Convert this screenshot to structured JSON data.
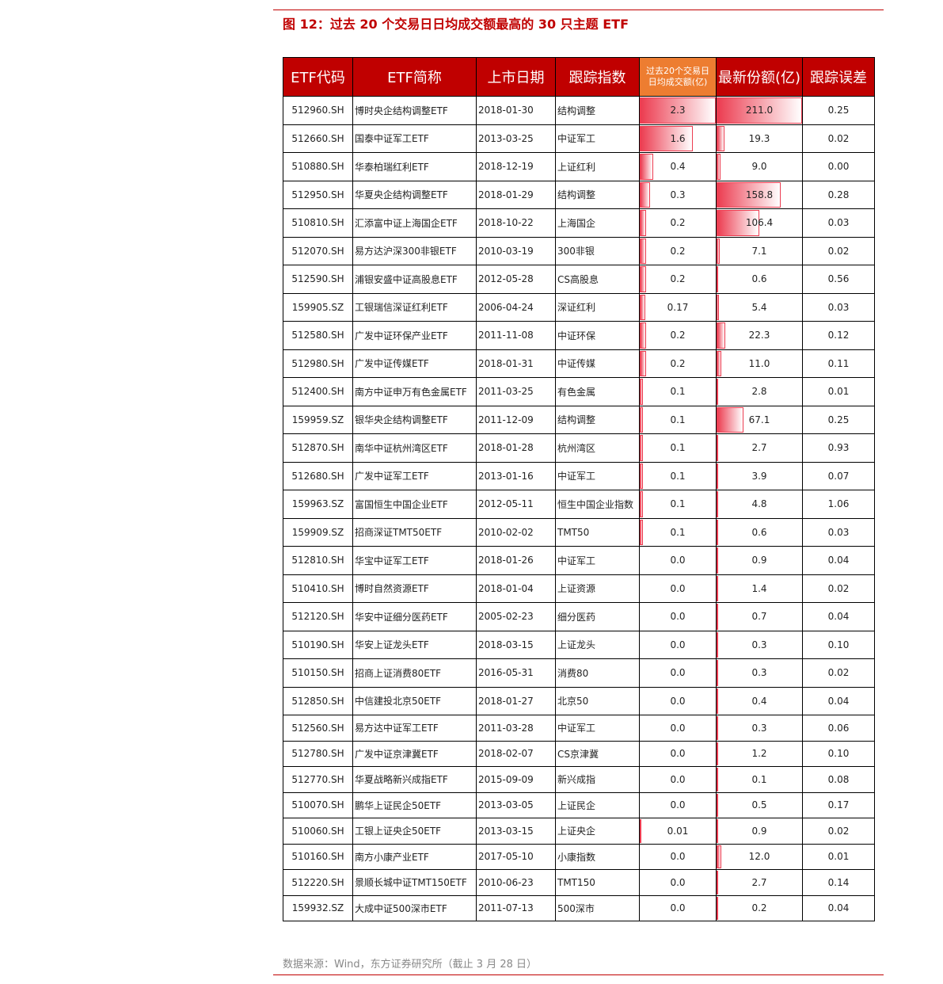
{
  "header": {
    "title": "图 12：过去 20 个交易日日均成交额最高的 30 只主题 ETF"
  },
  "table": {
    "columns": [
      "ETF代码",
      "ETF简称",
      "上市日期",
      "跟踪指数",
      "过去20个交易日日均成交额(亿)",
      "最新份额(亿)",
      "跟踪误差"
    ],
    "rows": [
      [
        "512960.SH",
        "博时央企结构调整ETF",
        "2018-01-30",
        "结构调整",
        "2.3",
        "211.0",
        "0.25"
      ],
      [
        "512660.SH",
        "国泰中证军工ETF",
        "2013-03-25",
        "中证军工",
        "1.6",
        "19.3",
        "0.02"
      ],
      [
        "510880.SH",
        "华泰柏瑞红利ETF",
        "2018-12-19",
        "上证红利",
        "0.4",
        "9.0",
        "0.00"
      ],
      [
        "512950.SH",
        "华夏央企结构调整ETF",
        "2018-01-29",
        "结构调整",
        "0.3",
        "158.8",
        "0.28"
      ],
      [
        "510810.SH",
        "汇添富中证上海国企ETF",
        "2018-10-22",
        "上海国企",
        "0.2",
        "106.4",
        "0.03"
      ],
      [
        "512070.SH",
        "易方达沪深300非银ETF",
        "2010-03-19",
        "300非银",
        "0.2",
        "7.1",
        "0.02"
      ],
      [
        "512590.SH",
        "浦银安盛中证高股息ETF",
        "2012-05-28",
        "CS高股息",
        "0.2",
        "0.6",
        "0.56"
      ],
      [
        "159905.SZ",
        "工银瑞信深证红利ETF",
        "2006-04-24",
        "深证红利",
        "0.17",
        "5.4",
        "0.03"
      ],
      [
        "512580.SH",
        "广发中证环保产业ETF",
        "2011-11-08",
        "中证环保",
        "0.2",
        "22.3",
        "0.12"
      ],
      [
        "512980.SH",
        "广发中证传媒ETF",
        "2018-01-31",
        "中证传媒",
        "0.2",
        "11.0",
        "0.11"
      ],
      [
        "512400.SH",
        "南方中证申万有色金属ETF",
        "2011-03-25",
        "有色金属",
        "0.1",
        "2.8",
        "0.01"
      ],
      [
        "159959.SZ",
        "银华央企结构调整ETF",
        "2011-12-09",
        "结构调整",
        "0.1",
        "67.1",
        "0.25"
      ],
      [
        "512870.SH",
        "南华中证杭州湾区ETF",
        "2018-01-28",
        "杭州湾区",
        "0.1",
        "2.7",
        "0.93"
      ],
      [
        "512680.SH",
        "广发中证军工ETF",
        "2013-01-16",
        "中证军工",
        "0.1",
        "3.9",
        "0.07"
      ],
      [
        "159963.SZ",
        "富国恒生中国企业ETF",
        "2012-05-11",
        "恒生中国企业指数",
        "0.1",
        "4.8",
        "1.06"
      ],
      [
        "159909.SZ",
        "招商深证TMT50ETF",
        "2010-02-02",
        "TMT50",
        "0.1",
        "0.6",
        "0.03"
      ],
      [
        "512810.SH",
        "华宝中证军工ETF",
        "2018-01-26",
        "中证军工",
        "0.0",
        "0.9",
        "0.04"
      ],
      [
        "510410.SH",
        "博时自然资源ETF",
        "2018-01-04",
        "上证资源",
        "0.0",
        "1.4",
        "0.02"
      ],
      [
        "512120.SH",
        "华安中证细分医药ETF",
        "2005-02-23",
        "细分医药",
        "0.0",
        "0.7",
        "0.04"
      ],
      [
        "510190.SH",
        "华安上证龙头ETF",
        "2018-03-15",
        "上证龙头",
        "0.0",
        "0.3",
        "0.10"
      ],
      [
        "510150.SH",
        "招商上证消费80ETF",
        "2016-05-31",
        "消费80",
        "0.0",
        "0.3",
        "0.02"
      ],
      [
        "512850.SH",
        "中信建投北京50ETF",
        "2018-01-27",
        "北京50",
        "0.0",
        "0.4",
        "0.04"
      ],
      [
        "512560.SH",
        "易方达中证军工ETF",
        "2011-03-28",
        "中证军工",
        "0.0",
        "0.3",
        "0.06"
      ],
      [
        "512780.SH",
        "广发中证京津冀ETF",
        "2018-02-07",
        "CS京津冀",
        "0.0",
        "1.2",
        "0.10"
      ],
      [
        "512770.SH",
        "华夏战略新兴成指ETF",
        "2015-09-09",
        "新兴成指",
        "0.0",
        "0.1",
        "0.08"
      ],
      [
        "510070.SH",
        "鹏华上证民企50ETF",
        "2013-03-05",
        "上证民企",
        "0.0",
        "0.5",
        "0.17"
      ],
      [
        "510060.SH",
        "工银上证央企50ETF",
        "2013-03-15",
        "上证央企",
        "0.01",
        "0.9",
        "0.02"
      ],
      [
        "510160.SH",
        "南方小康产业ETF",
        "2017-05-10",
        "小康指数",
        "0.0",
        "12.0",
        "0.01"
      ],
      [
        "512220.SH",
        "景顺长城中证TMT150ETF",
        "2010-06-23",
        "TMT150",
        "0.0",
        "2.7",
        "0.14"
      ],
      [
        "159932.SZ",
        "大成中证500深市ETF",
        "2011-07-13",
        "500深市",
        "0.0",
        "0.2",
        "0.04"
      ]
    ]
  },
  "footer": {
    "source": "数据来源：Wind，东方证券研究所（截止 3 月 28 日）"
  }
}
